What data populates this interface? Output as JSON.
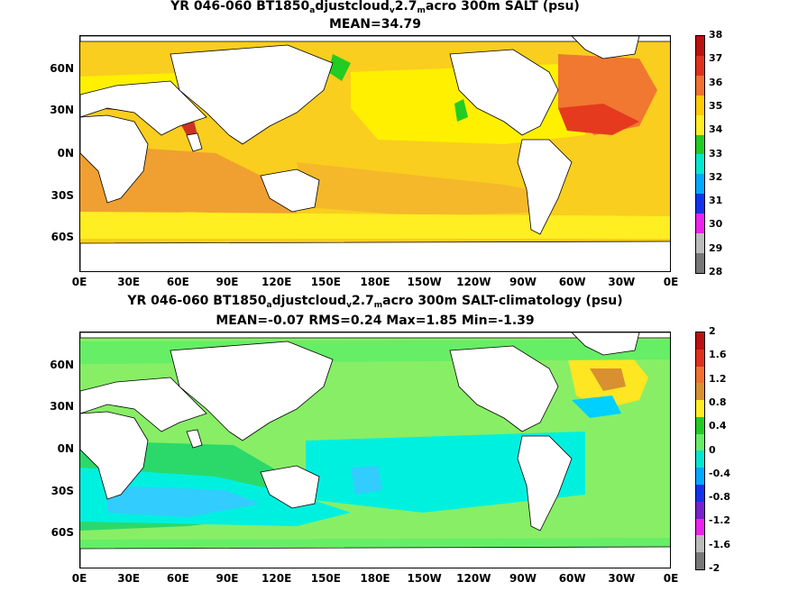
{
  "panels": [
    {
      "title_parts": [
        "YR 046-060 BT1850",
        "a",
        "djustcloud",
        "v",
        "2.7",
        "m",
        "acro 300m SALT (psu)"
      ],
      "subtitle": "MEAN=34.79",
      "colorbar": {
        "levels": [
          "38",
          "37",
          "36",
          "35",
          "34",
          "33",
          "32",
          "31",
          "30",
          "29",
          "28"
        ],
        "colors": [
          "#bb1111",
          "#e0301f",
          "#f07030",
          "#ffcc00",
          "#ffee22",
          "#22cc22",
          "#00e8d0",
          "#00aaff",
          "#1133ee",
          "#ee22ee",
          "#bbbbbb",
          "#777777"
        ]
      },
      "ocean_base": "#f9ce1e"
    },
    {
      "title_parts": [
        "YR 046-060 BT1850",
        "a",
        "djustcloud",
        "v",
        "2.7",
        "m",
        "acro 300m SALT-climatology (psu)"
      ],
      "subtitle": "MEAN=-0.07   RMS=0.24   Max=1.85   Min=-1.39",
      "colorbar": {
        "levels": [
          "2",
          "1.6",
          "1.2",
          "0.8",
          "0.4",
          "0",
          "-0.4",
          "-0.8",
          "-1.2",
          "-1.6",
          "-2"
        ],
        "colors": [
          "#bb1111",
          "#e0301f",
          "#f07030",
          "#d89030",
          "#ffee22",
          "#22cc22",
          "#66ee66",
          "#00e8d0",
          "#00aaff",
          "#1133ee",
          "#7722cc",
          "#ee22ee",
          "#bbbbbb",
          "#777777"
        ]
      },
      "ocean_base": "#88ee66"
    }
  ],
  "lat_labels": [
    "60N",
    "30N",
    "0N",
    "30S",
    "60S"
  ],
  "lon_labels": [
    "0E",
    "30E",
    "60E",
    "90E",
    "120E",
    "150E",
    "180E",
    "150W",
    "120W",
    "90W",
    "60W",
    "30W",
    "0E"
  ]
}
